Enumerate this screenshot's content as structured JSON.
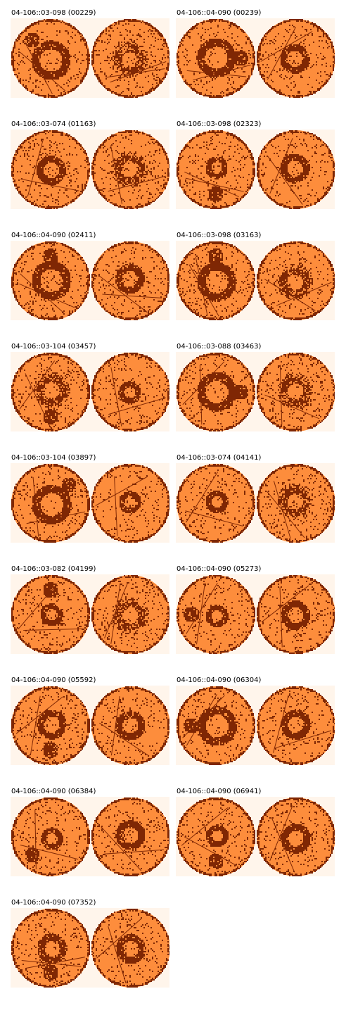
{
  "colors": {
    "background": "#fff5eb",
    "light": "#fd8d3c",
    "dark": "#7f2704",
    "page": "#ffffff"
  },
  "panels": [
    {
      "title": "04-106::03-098 (00229)",
      "left": {
        "ring": "thick",
        "blob": "top-left"
      },
      "right": {
        "ring": "speckle",
        "center": "light"
      }
    },
    {
      "title": "04-106::04-090 (00239)",
      "left": {
        "ring": "thick",
        "blob": "right"
      },
      "right": {
        "ring": "solid",
        "center": "light"
      }
    },
    {
      "title": "04-106::03-074 (01163)",
      "left": {
        "ring": "solid",
        "blob": "none"
      },
      "right": {
        "ring": "speckle",
        "center": "light"
      }
    },
    {
      "title": "04-106::03-098 (02323)",
      "left": {
        "ring": "thin",
        "blob": "bottom"
      },
      "right": {
        "ring": "solid",
        "center": "light"
      }
    },
    {
      "title": "04-106::04-090 (02411)",
      "left": {
        "ring": "thick",
        "blob": "top"
      },
      "right": {
        "ring": "solid",
        "center": "light"
      }
    },
    {
      "title": "04-106::03-098 (03163)",
      "left": {
        "ring": "thick",
        "blob": "top"
      },
      "right": {
        "ring": "speckle",
        "center": "light"
      }
    },
    {
      "title": "04-106::03-104 (03457)",
      "left": {
        "ring": "speckle",
        "blob": "bottom"
      },
      "right": {
        "ring": "thin",
        "center": "light"
      }
    },
    {
      "title": "04-106::03-088 (03463)",
      "left": {
        "ring": "thick",
        "blob": "right"
      },
      "right": {
        "ring": "speckle",
        "center": "light"
      }
    },
    {
      "title": "04-106::03-104 (03897)",
      "left": {
        "ring": "thick",
        "blob": "top-right"
      },
      "right": {
        "ring": "thin",
        "center": "light"
      }
    },
    {
      "title": "04-106::03-074 (04141)",
      "left": {
        "ring": "thin",
        "blob": "none"
      },
      "right": {
        "ring": "speckle",
        "center": "light"
      }
    },
    {
      "title": "04-106::03-082 (04199)",
      "left": {
        "ring": "thin",
        "blob": "top"
      },
      "right": {
        "ring": "speckle",
        "center": "light"
      }
    },
    {
      "title": "04-106::04-090 (05273)",
      "left": {
        "ring": "thin",
        "blob": "left"
      },
      "right": {
        "ring": "solid",
        "center": "light"
      }
    },
    {
      "title": "04-106::04-090 (05592)",
      "left": {
        "ring": "solid",
        "blob": "bottom"
      },
      "right": {
        "ring": "solid",
        "center": "light"
      }
    },
    {
      "title": "04-106::04-090 (06304)",
      "left": {
        "ring": "thick",
        "blob": "left"
      },
      "right": {
        "ring": "solid",
        "center": "light"
      }
    },
    {
      "title": "04-106::04-090 (06384)",
      "left": {
        "ring": "thin",
        "blob": "bottom-left"
      },
      "right": {
        "ring": "solid",
        "center": "light"
      }
    },
    {
      "title": "04-106::04-090 (06941)",
      "left": {
        "ring": "thin",
        "blob": "bottom"
      },
      "right": {
        "ring": "solid",
        "center": "light"
      }
    },
    {
      "title": "04-106::04-090 (07352)",
      "left": {
        "ring": "solid",
        "blob": "bottom"
      },
      "right": {
        "ring": "solid",
        "center": "light"
      }
    }
  ]
}
